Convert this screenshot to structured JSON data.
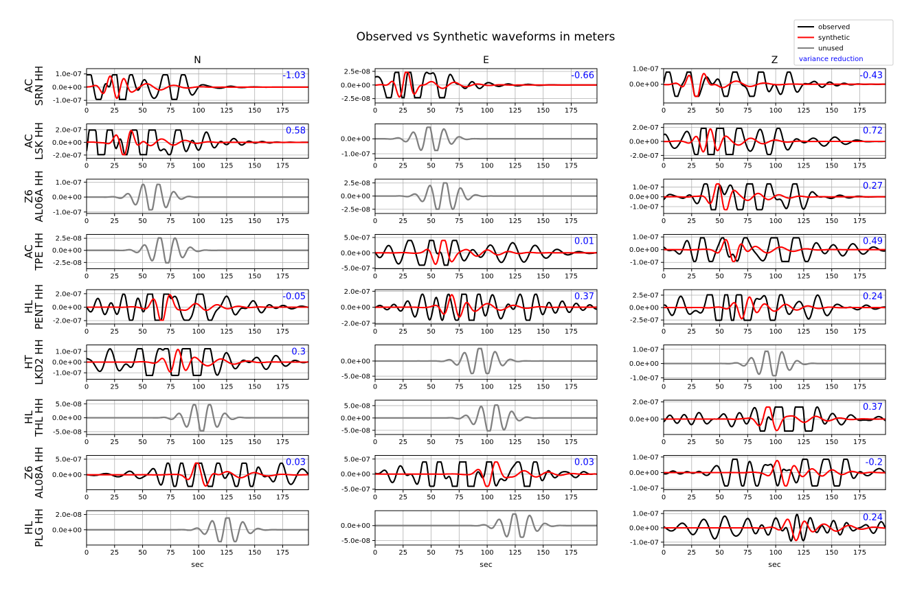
{
  "chart_data": {
    "type": "line",
    "title": "Observed vs Synthetic waveforms in meters",
    "xlabel": "sec",
    "columns": [
      "N",
      "E",
      "Z"
    ],
    "xlim": [
      0,
      198
    ],
    "x_ticks": [
      0,
      25,
      50,
      75,
      100,
      125,
      150,
      175
    ],
    "grid": true,
    "legend": {
      "placement": "top-right",
      "entries": [
        {
          "label": "observed",
          "color": "#000000"
        },
        {
          "label": "synthetic",
          "color": "#ff0000"
        },
        {
          "label": "unused",
          "color": "#808080"
        },
        {
          "label": "variance reduction",
          "color": "#0000ff",
          "text_only": true
        }
      ]
    },
    "colors": {
      "observed": "#000000",
      "synthetic": "#ff0000",
      "unused": "#808080",
      "vr": "#0000ff",
      "grid": "#b0b0b0"
    },
    "stations": [
      {
        "net": "AC",
        "sta": "SRN HH",
        "panels": [
          {
            "used": true,
            "vr": "-1.03",
            "ylim": [
              -1.2e-07,
              1.4e-07
            ],
            "ticks": [
              "1.0e-07",
              "0.0e+00",
              "-1.0e-07"
            ],
            "tick_values": [
              1e-07,
              0,
              -1e-07
            ]
          },
          {
            "used": true,
            "vr": "-0.66",
            "ylim": [
              -3.3e-08,
              3e-08
            ],
            "ticks": [
              "2.5e-08",
              "0.0e+00",
              "-2.5e-08"
            ],
            "tick_values": [
              2.5e-08,
              0,
              -2.5e-08
            ]
          },
          {
            "used": true,
            "vr": "-0.43",
            "ylim": [
              -1.2e-07,
              1e-07
            ],
            "ticks": [
              "1.0e-07",
              "0.0e+00"
            ],
            "tick_values": [
              1e-07,
              0
            ]
          }
        ]
      },
      {
        "net": "AC",
        "sta": "LSK HH",
        "panels": [
          {
            "used": true,
            "vr": "0.58",
            "ylim": [
              -2.5e-07,
              2.9e-07
            ],
            "ticks": [
              "2.0e-07",
              "0.0e+00",
              "-2.0e-07"
            ],
            "tick_values": [
              2e-07,
              0,
              -2e-07
            ]
          },
          {
            "used": false,
            "vr": "",
            "ylim": [
              -1.3e-07,
              1e-07
            ],
            "ticks": [
              "0.0e+00",
              "-1.0e-07"
            ],
            "tick_values": [
              0,
              -1e-07
            ]
          },
          {
            "used": true,
            "vr": "0.72",
            "ylim": [
              -2.4e-07,
              2.5e-07
            ],
            "ticks": [
              "2.0e-07",
              "0.0e+00",
              "-2.0e-07"
            ],
            "tick_values": [
              2e-07,
              0,
              -2e-07
            ]
          }
        ]
      },
      {
        "net": "Z6",
        "sta": "AL06A HH",
        "panels": [
          {
            "used": false,
            "vr": "",
            "ylim": [
              -1.1e-07,
              1.2e-07
            ],
            "ticks": [
              "1.0e-07",
              "0.0e+00",
              "-1.0e-07"
            ],
            "tick_values": [
              1e-07,
              0,
              -1e-07
            ]
          },
          {
            "used": false,
            "vr": "",
            "ylim": [
              -3.3e-08,
              3.2e-08
            ],
            "ticks": [
              "2.5e-08",
              "0.0e+00",
              "-2.5e-08"
            ],
            "tick_values": [
              2.5e-08,
              0,
              -2.5e-08
            ]
          },
          {
            "used": true,
            "vr": "0.27",
            "ylim": [
              -1.7e-07,
              1.8e-07
            ],
            "ticks": [
              "1.0e-07",
              "0.0e+00",
              "-1.0e-07"
            ],
            "tick_values": [
              1e-07,
              0,
              -1e-07
            ]
          }
        ]
      },
      {
        "net": "AC",
        "sta": "TPE HH",
        "panels": [
          {
            "used": false,
            "vr": "",
            "ylim": [
              -3.8e-08,
              3.3e-08
            ],
            "ticks": [
              "2.5e-08",
              "0.0e+00",
              "-2.5e-08"
            ],
            "tick_values": [
              2.5e-08,
              0,
              -2.5e-08
            ]
          },
          {
            "used": true,
            "vr": "0.01",
            "ylim": [
              -5.2e-07,
              6e-07
            ],
            "ticks": [
              "5.0e-07",
              "0.0e+00",
              "-5.0e-07"
            ],
            "tick_values": [
              5e-07,
              0,
              -5e-07
            ]
          },
          {
            "used": true,
            "vr": "0.49",
            "ylim": [
              -1.5e-07,
              1.2e-07
            ],
            "ticks": [
              "1.0e-07",
              "0.0e+00",
              "-1.0e-07"
            ],
            "tick_values": [
              1e-07,
              0,
              -1e-07
            ]
          }
        ]
      },
      {
        "net": "HL",
        "sta": "PENT HH",
        "panels": [
          {
            "used": true,
            "vr": "-0.05",
            "ylim": [
              -2.5e-07,
              2.6e-07
            ],
            "ticks": [
              "2.0e-07",
              "0.0e+00",
              "-2.0e-07"
            ],
            "tick_values": [
              2e-07,
              0,
              -2e-07
            ]
          },
          {
            "used": true,
            "vr": "0.37",
            "ylim": [
              -2.1e-07,
              2.2e-07
            ],
            "ticks": [
              "2.0e-07",
              "0.0e+00",
              "-2.0e-07"
            ],
            "tick_values": [
              2e-07,
              0,
              -2e-07
            ]
          },
          {
            "used": true,
            "vr": "0.24",
            "ylim": [
              -3.3e-07,
              3.6e-07
            ],
            "ticks": [
              "2.5e-07",
              "0.0e+00",
              "-2.5e-07"
            ],
            "tick_values": [
              2.5e-07,
              0,
              -2.5e-07
            ]
          }
        ]
      },
      {
        "net": "HT",
        "sta": "LKD2 HH",
        "panels": [
          {
            "used": true,
            "vr": "0.3",
            "ylim": [
              -1.6e-07,
              1.6e-07
            ],
            "ticks": [
              "1.0e-07",
              "0.0e+00",
              "-1.0e-07"
            ],
            "tick_values": [
              1e-07,
              0,
              -1e-07
            ]
          },
          {
            "used": false,
            "vr": "",
            "ylim": [
              -6e-08,
              5.3e-08
            ],
            "ticks": [
              "0.0e+00",
              "-5.0e-08"
            ],
            "tick_values": [
              0,
              -5e-08
            ]
          },
          {
            "used": false,
            "vr": "",
            "ylim": [
              -1.1e-07,
              1.3e-07
            ],
            "ticks": [
              "1.0e-07",
              "0.0e+00",
              "-1.0e-07"
            ],
            "tick_values": [
              1e-07,
              0,
              -1e-07
            ]
          }
        ]
      },
      {
        "net": "HL",
        "sta": "THL HH",
        "panels": [
          {
            "used": false,
            "vr": "",
            "ylim": [
              -6e-08,
              6.3e-08
            ],
            "ticks": [
              "5.0e-08",
              "0.0e+00",
              "-5.0e-08"
            ],
            "tick_values": [
              5e-08,
              0,
              -5e-08
            ]
          },
          {
            "used": false,
            "vr": "",
            "ylim": [
              -6.7e-08,
              7.2e-08
            ],
            "ticks": [
              "5.0e-08",
              "0.0e+00",
              "-5.0e-08"
            ],
            "tick_values": [
              5e-08,
              0,
              -5e-08
            ]
          },
          {
            "used": true,
            "vr": "0.37",
            "ylim": [
              -1.8e-07,
              2.2e-07
            ],
            "ticks": [
              "2.0e-07",
              "0.0e+00"
            ],
            "tick_values": [
              2e-07,
              0
            ]
          }
        ]
      },
      {
        "net": "Z6",
        "sta": "AL08A HH",
        "panels": [
          {
            "used": true,
            "vr": "0.03",
            "ylim": [
              -4.8e-07,
              6.2e-07
            ],
            "ticks": [
              "5.0e-07",
              "0.0e+00"
            ],
            "tick_values": [
              5e-07,
              0
            ]
          },
          {
            "used": true,
            "vr": "0.03",
            "ylim": [
              -5.2e-07,
              6.2e-07
            ],
            "ticks": [
              "5.0e-07",
              "0.0e+00",
              "-5.0e-07"
            ],
            "tick_values": [
              5e-07,
              0,
              -5e-07
            ]
          },
          {
            "used": true,
            "vr": "-0.2",
            "ylim": [
              -1.1e-07,
              1.1e-07
            ],
            "ticks": [
              "1.0e-07",
              "0.0e+00",
              "-1.0e-07"
            ],
            "tick_values": [
              1e-07,
              0,
              -1e-07
            ]
          }
        ]
      },
      {
        "net": "HL",
        "sta": "PLG HH",
        "panels": [
          {
            "used": false,
            "vr": "",
            "ylim": [
              -2e-08,
              2.5e-08
            ],
            "ticks": [
              "2.0e-08",
              "0.0e+00"
            ],
            "tick_values": [
              2e-08,
              0
            ]
          },
          {
            "used": false,
            "vr": "",
            "ylim": [
              -6.5e-08,
              5e-08
            ],
            "ticks": [
              "0.0e+00",
              "-5.0e-08"
            ],
            "tick_values": [
              0,
              -5e-08
            ]
          },
          {
            "used": true,
            "vr": "0.24",
            "ylim": [
              -1.2e-07,
              1.2e-07
            ],
            "ticks": [
              "1.0e-07",
              "0.0e+00",
              "-1.0e-07"
            ],
            "tick_values": [
              1e-07,
              0,
              -1e-07
            ]
          }
        ]
      }
    ]
  }
}
